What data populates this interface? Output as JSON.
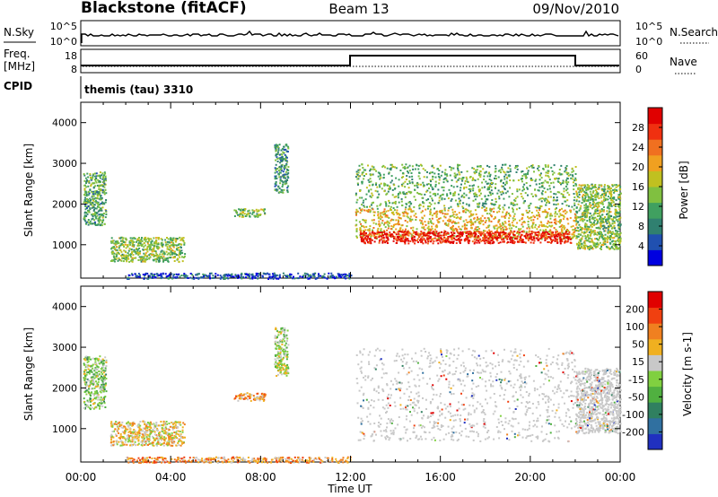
{
  "header": {
    "station": "Blackstone (fitACF)",
    "beam": "Beam 13",
    "date": "09/Nov/2010"
  },
  "top_panels": {
    "nsky_label": "N.Sky",
    "nsearch_label": "N.Search",
    "freq_label": "Freq.",
    "freq_unit": "[MHz]",
    "nave_label": "Nave",
    "cpid_label": "CPID",
    "cpid_value": "themis (tau) 3310",
    "noise_ticks": [
      "10^5",
      "10^0"
    ],
    "freq_ticks": [
      "18",
      "8"
    ],
    "nave_ticks": [
      "60",
      "0"
    ]
  },
  "chart_data": [
    {
      "type": "heatmap",
      "name": "power",
      "xlabel": "Time UT",
      "ylabel": "Slant Range [km]",
      "x_ticks": [
        "00:00",
        "04:00",
        "08:00",
        "12:00",
        "16:00",
        "20:00",
        "00:00"
      ],
      "xlim_hours": [
        0,
        24
      ],
      "ylim": [
        180,
        4500
      ],
      "y_ticks": [
        1000,
        2000,
        3000,
        4000
      ],
      "colorbar": {
        "label": "Power [dB]",
        "ticks": [
          "28",
          "24",
          "20",
          "16",
          "12",
          "8",
          "4"
        ],
        "colors": [
          "#0000e0",
          "#2050b0",
          "#308070",
          "#40a060",
          "#80c040",
          "#c0c020",
          "#f0a020",
          "#f07020",
          "#f03010",
          "#e00000"
        ]
      },
      "regions": [
        {
          "t": [
            0.1,
            1.1
          ],
          "r": [
            1500,
            2800
          ],
          "level": 0.35
        },
        {
          "t": [
            1.3,
            4.6
          ],
          "r": [
            600,
            1200
          ],
          "level": 0.45
        },
        {
          "t": [
            6.8,
            8.2
          ],
          "r": [
            1700,
            1900
          ],
          "level": 0.45
        },
        {
          "t": [
            8.6,
            9.2
          ],
          "r": [
            2300,
            3500
          ],
          "level": 0.3
        },
        {
          "t": [
            12.2,
            22.0
          ],
          "r": [
            1900,
            3000
          ],
          "level": 0.4
        },
        {
          "t": [
            12.2,
            22.0
          ],
          "r": [
            1150,
            1900
          ],
          "level": 0.6
        },
        {
          "t": [
            12.4,
            21.8
          ],
          "r": [
            1050,
            1350
          ],
          "level": 0.92
        },
        {
          "t": [
            22.0,
            24.0
          ],
          "r": [
            900,
            2500
          ],
          "level": 0.45
        },
        {
          "t": [
            2.0,
            12.0
          ],
          "r": [
            180,
            320
          ],
          "level": 0.15
        }
      ]
    },
    {
      "type": "heatmap",
      "name": "velocity",
      "xlabel": "Time UT",
      "ylabel": "Slant Range [km]",
      "x_ticks": [
        "00:00",
        "04:00",
        "08:00",
        "12:00",
        "16:00",
        "20:00",
        "00:00"
      ],
      "xlim_hours": [
        0,
        24
      ],
      "ylim": [
        180,
        4500
      ],
      "y_ticks": [
        1000,
        2000,
        3000,
        4000
      ],
      "colorbar": {
        "label": "Velocity [m s-1]",
        "ticks": [
          "200",
          "100",
          "50",
          "15",
          "-15",
          "-50",
          "-100",
          "-200"
        ],
        "colors": [
          "#2030c0",
          "#3070a0",
          "#308060",
          "#50b040",
          "#80d040",
          "#c8c8c8",
          "#f0b020",
          "#f08020",
          "#f04010",
          "#e00000"
        ]
      },
      "regions": [
        {
          "t": [
            0.1,
            1.1
          ],
          "r": [
            1500,
            2800
          ],
          "level": 0.45
        },
        {
          "t": [
            1.3,
            4.6
          ],
          "r": [
            600,
            1200
          ],
          "level": 0.6
        },
        {
          "t": [
            6.8,
            8.2
          ],
          "r": [
            1700,
            1900
          ],
          "level": 0.7
        },
        {
          "t": [
            8.6,
            9.2
          ],
          "r": [
            2300,
            3500
          ],
          "level": 0.5
        },
        {
          "t": [
            12.2,
            22.0
          ],
          "r": [
            700,
            3000
          ],
          "level": 0.5
        },
        {
          "t": [
            22.0,
            24.0
          ],
          "r": [
            900,
            2500
          ],
          "level": 0.5
        },
        {
          "t": [
            2.0,
            12.0
          ],
          "r": [
            180,
            320
          ],
          "level": 0.7
        }
      ]
    }
  ]
}
